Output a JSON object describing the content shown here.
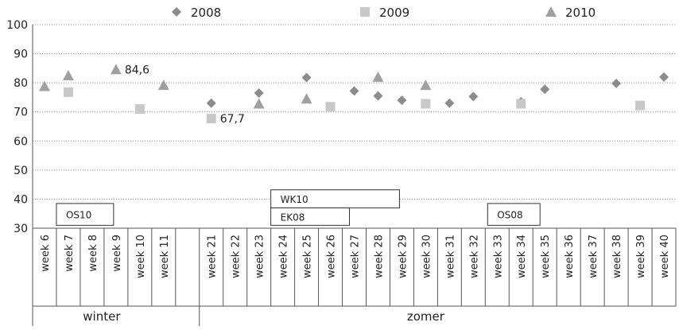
{
  "chart_data": {
    "type": "scatter",
    "ylim": [
      30,
      100
    ],
    "yticks": [
      30,
      40,
      50,
      60,
      70,
      80,
      90,
      100
    ],
    "grid": true,
    "legend_position": "top",
    "categories": [
      "week 6",
      "week 7",
      "week 8",
      "week 9",
      "week 10",
      "week 11",
      "",
      "week 21",
      "week 22",
      "week 23",
      "week 24",
      "week 25",
      "week 26",
      "week 27",
      "week 28",
      "week 29",
      "week 30",
      "week 31",
      "week 32",
      "week 33",
      "week 34",
      "week 35",
      "week 36",
      "week 37",
      "week 38",
      "week 39",
      "week 40"
    ],
    "groups": [
      {
        "label": "winter",
        "from": 0,
        "to": 6
      },
      {
        "label": "zomer",
        "from": 7,
        "to": 26
      }
    ],
    "series": [
      {
        "name": "2008",
        "marker": "diamond",
        "color": "#8c8c8c",
        "values": [
          null,
          null,
          null,
          null,
          null,
          null,
          null,
          73,
          null,
          76.5,
          null,
          81.8,
          null,
          77.2,
          75.5,
          74,
          null,
          73,
          75.3,
          null,
          73.5,
          77.8,
          null,
          null,
          79.8,
          null,
          82
        ]
      },
      {
        "name": "2009",
        "marker": "square",
        "color": "#c8c8c8",
        "values": [
          null,
          76.8,
          null,
          null,
          71,
          null,
          null,
          67.7,
          null,
          null,
          null,
          null,
          71.8,
          null,
          null,
          null,
          72.8,
          null,
          null,
          null,
          72.8,
          null,
          null,
          null,
          null,
          72.2,
          null
        ]
      },
      {
        "name": "2010",
        "marker": "triangle",
        "color": "#a0a0a0",
        "values": [
          78.8,
          82.5,
          null,
          84.6,
          null,
          79.2,
          null,
          null,
          null,
          72.8,
          null,
          74.5,
          null,
          null,
          82,
          null,
          79.2,
          null,
          null,
          null,
          null,
          null,
          null,
          null,
          null,
          null,
          null
        ]
      }
    ],
    "annotations": [
      {
        "text": "84,6",
        "category": 3,
        "value": 84.6
      },
      {
        "text": "67,7",
        "category": 7,
        "value": 67.7
      }
    ],
    "labeled_boxes": [
      {
        "text": "OS10",
        "from": 1,
        "to": 3.4,
        "value_top": 38.5,
        "value_bottom": 31
      },
      {
        "text": "WK10",
        "from": 10,
        "to": 15.4,
        "value_top": 43.2,
        "value_bottom": 37
      },
      {
        "text": "EK08",
        "from": 10,
        "to": 13.3,
        "value_top": 37,
        "value_bottom": 31
      },
      {
        "text": "OS08",
        "from": 19.1,
        "to": 21.3,
        "value_top": 38.5,
        "value_bottom": 31
      }
    ]
  }
}
